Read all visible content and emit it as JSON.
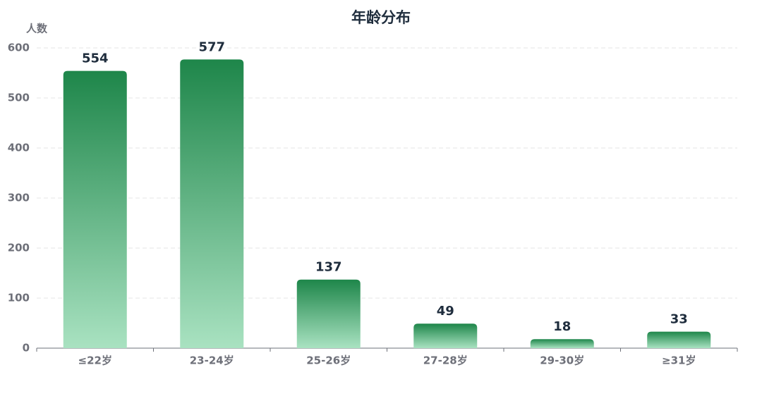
{
  "chart_data": {
    "type": "bar",
    "title": "年龄分布",
    "y_label": "人数",
    "categories": [
      "≤22岁",
      "23-24岁",
      "25-26岁",
      "27-28岁",
      "29-30岁",
      "≥31岁"
    ],
    "values": [
      554,
      577,
      137,
      49,
      18,
      33
    ],
    "gradient": [
      "#1e864a",
      "#a9e2c1"
    ],
    "ylim": [
      0,
      600
    ],
    "yticks": [
      0,
      100,
      200,
      300,
      400,
      500,
      600
    ],
    "grid": true
  }
}
